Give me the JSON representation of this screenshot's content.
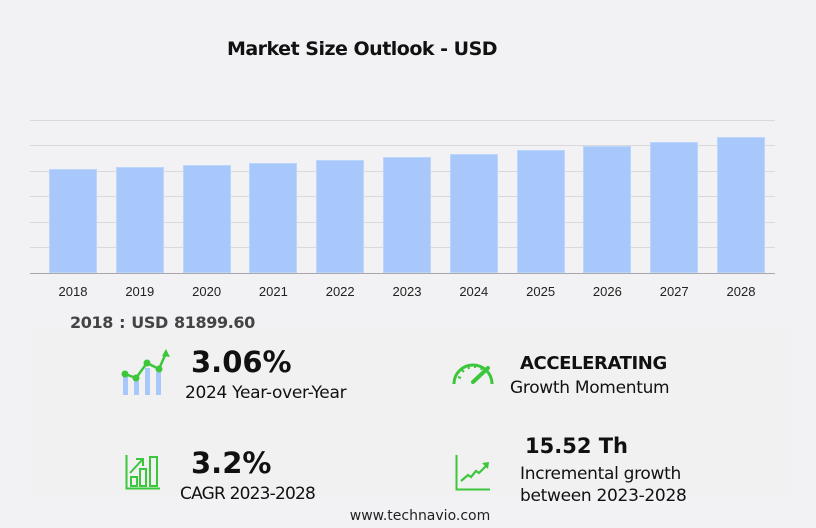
{
  "title": "Market Size Outlook  - USD",
  "chart_data": {
    "type": "bar",
    "title": "Market Size Outlook - USD",
    "xlabel": "",
    "ylabel": "",
    "categories": [
      "2018",
      "2019",
      "2020",
      "2021",
      "2022",
      "2023",
      "2024",
      "2025",
      "2026",
      "2027",
      "2028"
    ],
    "values": [
      81899.6,
      83450,
      85000,
      86600,
      88550,
      90900,
      93680,
      96750,
      99900,
      103050,
      106420
    ],
    "ylim": [
      0,
      120000
    ],
    "yticks_visible": false,
    "grid": true,
    "gridline_count": 6,
    "bar_color": "#a8c8fc",
    "legend": null
  },
  "x_labels": [
    "2018",
    "2019",
    "2020",
    "2021",
    "2022",
    "2023",
    "2024",
    "2025",
    "2026",
    "2027",
    "2028"
  ],
  "base_value": "2018 : USD  81899.60",
  "stats": {
    "yoy": {
      "value": "3.06%",
      "label": "2024 Year-over-Year",
      "icon": "bar-line-growth-icon"
    },
    "momentum": {
      "value": "ACCELERATING",
      "label": "Growth Momentum",
      "icon": "speedometer-icon"
    },
    "cagr": {
      "value": "3.2%",
      "label": "CAGR 2023-2028",
      "icon": "bar-chart-arrow-icon"
    },
    "incremental": {
      "value": "15.52 Th",
      "label_line1": "Incremental growth",
      "label_line2": "between 2023-2028",
      "icon": "trend-line-icon"
    }
  },
  "colors": {
    "accent_green": "#3cc63c",
    "bar_blue": "#a8c8fc"
  },
  "footer": "www.technavio.com"
}
